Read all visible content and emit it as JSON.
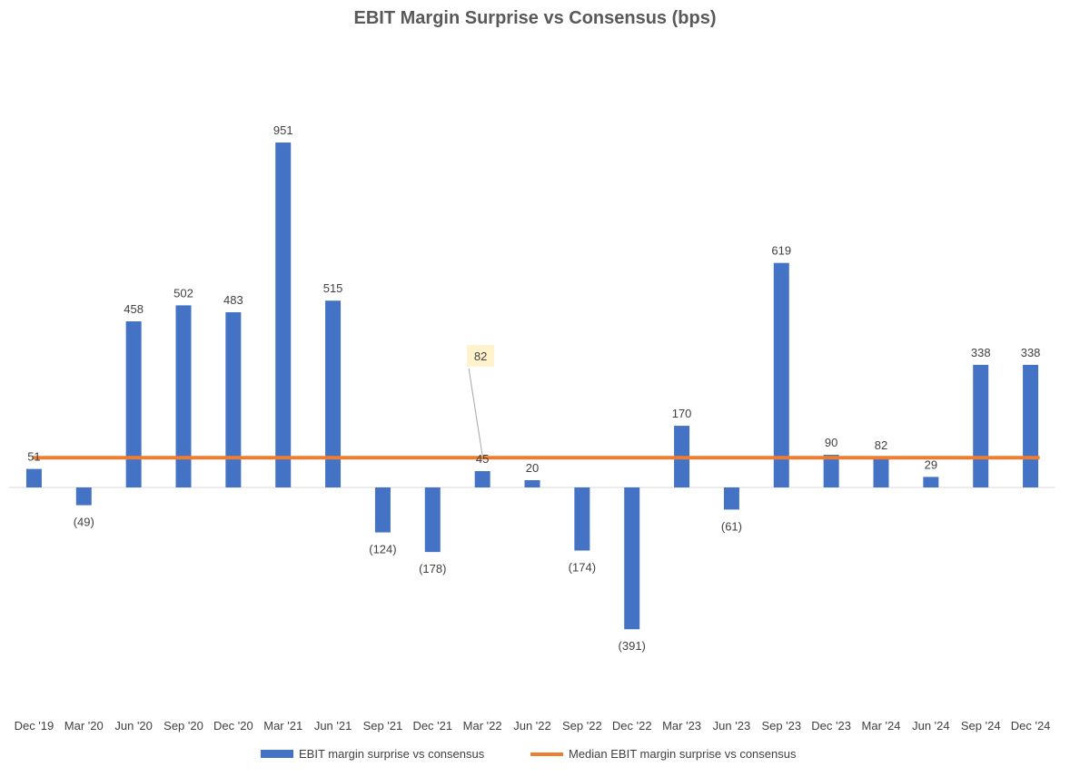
{
  "chart_data": {
    "type": "bar",
    "title": "EBIT Margin Surprise vs Consensus (bps)",
    "xlabel": "",
    "ylabel": "",
    "categories": [
      "Dec '19",
      "Mar '20",
      "Jun '20",
      "Sep '20",
      "Dec '20",
      "Mar '21",
      "Jun '21",
      "Sep '21",
      "Dec '21",
      "Mar '22",
      "Jun '22",
      "Sep '22",
      "Dec '22",
      "Mar '23",
      "Jun '23",
      "Sep '23",
      "Dec '23",
      "Mar '24",
      "Jun '24",
      "Sep '24",
      "Dec '24"
    ],
    "series": [
      {
        "name": "EBIT margin surprise vs consensus",
        "kind": "bar",
        "color": "#4472C4",
        "values": [
          51,
          -49,
          458,
          502,
          483,
          951,
          515,
          -124,
          -178,
          45,
          20,
          -174,
          -391,
          170,
          -61,
          619,
          90,
          82,
          29,
          338,
          338
        ],
        "labels": [
          "51",
          "(49)",
          "458",
          "502",
          "483",
          "951",
          "515",
          "(124)",
          "(178)",
          "45",
          "20",
          "(174)",
          "(391)",
          "170",
          "(61)",
          "619",
          "90",
          "82",
          "29",
          "338",
          "338"
        ]
      },
      {
        "name": "Median EBIT margin surprise vs consensus",
        "kind": "line",
        "color": "#ED7D31",
        "values": [
          82,
          82,
          82,
          82,
          82,
          82,
          82,
          82,
          82,
          82,
          82,
          82,
          82,
          82,
          82,
          82,
          82,
          82,
          82,
          82,
          82
        ]
      }
    ],
    "annotations": [
      {
        "category": "Mar '22",
        "text": "82",
        "fill": "#FFF2CC"
      }
    ],
    "ylim": [
      -400,
      1000
    ],
    "grid": false,
    "legend": "bottom"
  }
}
